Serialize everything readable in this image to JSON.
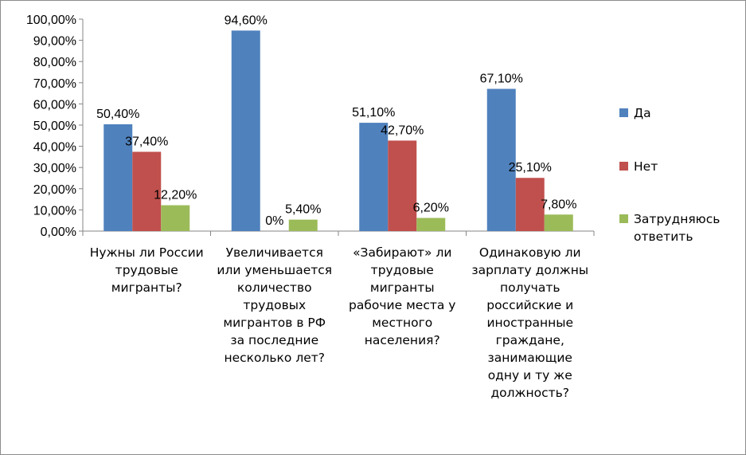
{
  "chart_data": {
    "type": "bar",
    "categories": [
      "Нужны ли России трудовые мигранты?",
      "Увеличивается или уменьшается количество трудовых мигрантов в РФ за последние несколько лет?",
      "«Забирают» ли трудовые мигранты рабочие места у местного населения?",
      "Одинаковую ли зарплату должны получать российские и иностранные граждане, занимающие одну и ту же должность?"
    ],
    "series": [
      {
        "name": "Да",
        "color": "#4F81BD",
        "values": [
          50.4,
          94.6,
          51.1,
          67.1
        ],
        "labels": [
          "50,40%",
          "94,60%",
          "51,10%",
          "67,10%"
        ]
      },
      {
        "name": "Нет",
        "color": "#C0504D",
        "values": [
          37.4,
          0,
          42.7,
          25.1
        ],
        "labels": [
          "37,40%",
          "0%",
          "42,70%",
          "25,10%"
        ]
      },
      {
        "name": "Затрудняюсь ответить",
        "color": "#9BBB59",
        "values": [
          12.2,
          5.4,
          6.2,
          7.8
        ],
        "labels": [
          "12,20%",
          "5,40%",
          "6,20%",
          "7,80%"
        ]
      }
    ],
    "ylim": [
      0,
      100
    ],
    "yticks": [
      0,
      10,
      20,
      30,
      40,
      50,
      60,
      70,
      80,
      90,
      100
    ],
    "ytick_labels": [
      "0,00%",
      "10,00%",
      "20,00%",
      "30,00%",
      "40,00%",
      "50,00%",
      "60,00%",
      "70,00%",
      "80,00%",
      "90,00%",
      "100,00%"
    ],
    "legend_position": "right",
    "grid": false
  }
}
